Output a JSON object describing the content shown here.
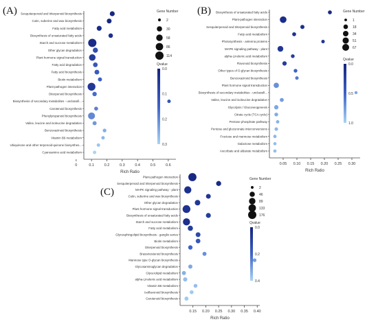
{
  "panels": [
    "(A)",
    "(B)",
    "(C)"
  ],
  "chart_data": [
    {
      "type": "scatter",
      "panel": "(A)",
      "xlabel": "Rich Ratio",
      "xlim": [
        0.1,
        0.6
      ],
      "xticks": [
        "0",
        "0.1",
        "0.2",
        "0.3",
        "0.4",
        "0.5",
        "0.6"
      ],
      "size_legend": {
        "title": "Gene Number",
        "values": [
          2,
          30,
          58,
          86,
          114
        ]
      },
      "color_legend": {
        "title": "Qvalue",
        "ticks": [
          "0.0",
          "0.1",
          "0.2",
          "0.3"
        ]
      },
      "categories": [
        "Sesquiterpenoid and triterpenoid biosynthesis",
        "Cutin, suberine and wax biosynthesis",
        "Fatty acid metabolism",
        "Biosynthesis of unsaturated fatty acids",
        "Starch and sucrose metabolism",
        "Other glycan degradation",
        "Plant hormone signal transduction",
        "Fatty acid degradation",
        "Fatty acid biosynthesis",
        "Biotin metabolism",
        "Plant-pathogen interaction",
        "Diterpenoid biosynthesis",
        "Biosynthesis of secondary metabolites - unclassifi...",
        "Carotenoid biosynthesis",
        "Phenylpropanoid biosynthesis",
        "Valine, leucine and isoleucine degradation",
        "Benzoxazinoid biosynthesis",
        "Vitamin B6 metabolism",
        "Ubiquinone and other terpenoid-quinone biosynthes...",
        "Cyanoamino acid metabolism"
      ],
      "points": [
        {
          "x": 0.235,
          "q": 0.01,
          "n": 25
        },
        {
          "x": 0.215,
          "q": 0.01,
          "n": 22
        },
        {
          "x": 0.15,
          "q": 0.02,
          "n": 25
        },
        {
          "x": 0.225,
          "q": 0.03,
          "n": 18
        },
        {
          "x": 0.105,
          "q": 0.02,
          "n": 114
        },
        {
          "x": 0.125,
          "q": 0.1,
          "n": 28
        },
        {
          "x": 0.105,
          "q": 0.06,
          "n": 60
        },
        {
          "x": 0.125,
          "q": 0.12,
          "n": 20
        },
        {
          "x": 0.135,
          "q": 0.13,
          "n": 22
        },
        {
          "x": 0.155,
          "q": 0.14,
          "n": 12
        },
        {
          "x": 0.1,
          "q": 0.05,
          "n": 100
        },
        {
          "x": 0.12,
          "q": 0.16,
          "n": 16
        },
        {
          "x": 0.605,
          "q": 0.12,
          "n": 6
        },
        {
          "x": 0.13,
          "q": 0.19,
          "n": 10
        },
        {
          "x": 0.1,
          "q": 0.2,
          "n": 70
        },
        {
          "x": 0.12,
          "q": 0.22,
          "n": 12
        },
        {
          "x": 0.185,
          "q": 0.25,
          "n": 8
        },
        {
          "x": 0.175,
          "q": 0.26,
          "n": 6
        },
        {
          "x": 0.145,
          "q": 0.28,
          "n": 6
        },
        {
          "x": 0.12,
          "q": 0.3,
          "n": 6
        }
      ]
    },
    {
      "type": "scatter",
      "panel": "(B)",
      "xlabel": "Rich Ratio",
      "xlim": [
        0.0,
        0.3
      ],
      "xticks": [
        "0.05",
        "0.10",
        "0.15",
        "0.20",
        "0.25",
        "0.30"
      ],
      "size_legend": {
        "title": "Gene Number",
        "values": [
          1,
          18,
          34,
          51,
          67
        ]
      },
      "color_legend": {
        "title": "Qvalue",
        "ticks": [
          "0.0",
          "0.5",
          "1.0"
        ]
      },
      "categories": [
        "Biosynthesis of unsaturated fatty acids",
        "Plant-pathogen interaction",
        "Sesquiterpenoid and triterpenoid biosynthesis",
        "Fatty acid metabolism",
        "Photosynthesis - antenna proteins",
        "MAPK signaling pathway - plant",
        "alpha-Linolenic acid metabolism",
        "Flavonoid biosynthesis",
        "Other types of O-glycan biosynthesis",
        "Benzoxazinoid biosynthesis",
        "Plant hormone signal transduction",
        "Biosynthesis of secondary metabolites - unclassifi...",
        "Valine, leucine and isoleucine degradation",
        "Glycolysis / Gluconeogenesis",
        "Citrate cycle (TCA cycle)",
        "Pentose phosphate pathway",
        "Pentose and glucuronate interconversions",
        "Fructose and mannose metabolism",
        "Galactose metabolism",
        "Ascorbate and aldarate metabolism"
      ],
      "points": [
        {
          "x": 0.22,
          "q": 0.05,
          "n": 10
        },
        {
          "x": 0.05,
          "q": 0.08,
          "n": 60
        },
        {
          "x": 0.12,
          "q": 0.1,
          "n": 12
        },
        {
          "x": 0.09,
          "q": 0.12,
          "n": 10
        },
        {
          "x": 0.195,
          "q": 0.15,
          "n": 6
        },
        {
          "x": 0.04,
          "q": 0.15,
          "n": 40
        },
        {
          "x": 0.085,
          "q": 0.2,
          "n": 8
        },
        {
          "x": 0.055,
          "q": 0.2,
          "n": 15
        },
        {
          "x": 0.095,
          "q": 0.5,
          "n": 8
        },
        {
          "x": 0.1,
          "q": 0.6,
          "n": 6
        },
        {
          "x": 0.025,
          "q": 0.7,
          "n": 30
        },
        {
          "x": 0.315,
          "q": 0.8,
          "n": 3
        },
        {
          "x": 0.045,
          "q": 0.75,
          "n": 10
        },
        {
          "x": 0.025,
          "q": 0.8,
          "n": 15
        },
        {
          "x": 0.025,
          "q": 0.82,
          "n": 8
        },
        {
          "x": 0.03,
          "q": 0.85,
          "n": 5
        },
        {
          "x": 0.025,
          "q": 0.87,
          "n": 6
        },
        {
          "x": 0.02,
          "q": 0.88,
          "n": 5
        },
        {
          "x": 0.02,
          "q": 0.9,
          "n": 4
        },
        {
          "x": 0.02,
          "q": 0.9,
          "n": 4
        }
      ]
    },
    {
      "type": "scatter",
      "panel": "(C)",
      "xlabel": "Rich Ratio",
      "xlim": [
        0.1,
        0.4
      ],
      "xticks": [
        "0.15",
        "0.20",
        "0.25",
        "0.30",
        "0.35",
        "0.40"
      ],
      "size_legend": {
        "title": "Gene Number",
        "values": [
          2,
          46,
          89,
          133,
          176
        ]
      },
      "color_legend": {
        "title": "Qvalue",
        "ticks": [
          "0.0",
          "0.2",
          "0.4"
        ]
      },
      "categories": [
        "Plant-pathogen interaction",
        "Sesquiterpenoid and triterpenoid biosynthesis",
        "MAPK signaling pathway - plant",
        "Cutin, suberine and wax biosynthesis",
        "Other glycan degradation",
        "Plant hormone signal transduction",
        "Biosynthesis of unsaturated fatty acids",
        "Starch and sucrose metabolism",
        "Fatty acid metabolism",
        "Glycosphingolipid biosynthesis - ganglio series",
        "Biotin metabolism",
        "Diterpenoid biosynthesis",
        "Brassinosteroid biosynthesis",
        "Mannose type O-glycan biosynthesis",
        "Glycosaminoglycan degradation",
        "Glycerolipid metabolism",
        "alpha-Linolenic acid metabolism",
        "Vitamin B6 metabolism",
        "Isoflavonoid biosynthesis",
        "Carotenoid biosynthesis"
      ],
      "points": [
        {
          "x": 0.148,
          "q": 0.02,
          "n": 170
        },
        {
          "x": 0.25,
          "q": 0.03,
          "n": 40
        },
        {
          "x": 0.13,
          "q": 0.05,
          "n": 120
        },
        {
          "x": 0.21,
          "q": 0.08,
          "n": 35
        },
        {
          "x": 0.168,
          "q": 0.08,
          "n": 55
        },
        {
          "x": 0.125,
          "q": 0.06,
          "n": 150
        },
        {
          "x": 0.21,
          "q": 0.1,
          "n": 38
        },
        {
          "x": 0.125,
          "q": 0.05,
          "n": 120
        },
        {
          "x": 0.14,
          "q": 0.1,
          "n": 45
        },
        {
          "x": 0.17,
          "q": 0.15,
          "n": 35
        },
        {
          "x": 0.17,
          "q": 0.2,
          "n": 30
        },
        {
          "x": 0.14,
          "q": 0.25,
          "n": 25
        },
        {
          "x": 0.195,
          "q": 0.35,
          "n": 18
        },
        {
          "x": 0.39,
          "q": 0.38,
          "n": 12
        },
        {
          "x": 0.14,
          "q": 0.4,
          "n": 20
        },
        {
          "x": 0.115,
          "q": 0.42,
          "n": 18
        },
        {
          "x": 0.12,
          "q": 0.45,
          "n": 22
        },
        {
          "x": 0.16,
          "q": 0.45,
          "n": 14
        },
        {
          "x": 0.145,
          "q": 0.48,
          "n": 16
        },
        {
          "x": 0.125,
          "q": 0.48,
          "n": 18
        }
      ]
    }
  ]
}
